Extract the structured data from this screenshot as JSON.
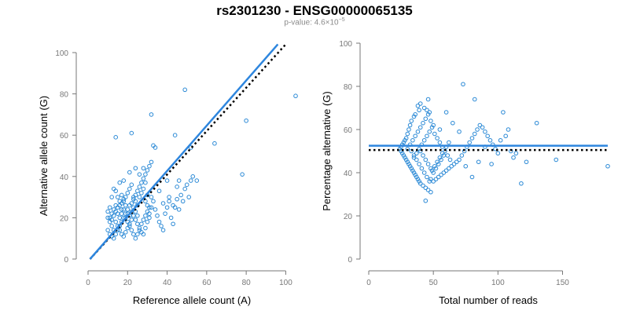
{
  "title": "rs2301230 - ENSG00000065135",
  "subtitle": {
    "prefix": "p-value: 4.6",
    "times": "×",
    "base": "10",
    "exponent": "−5"
  },
  "colors": {
    "points": "#2c8ad6",
    "fit_line": "#2e86de",
    "reference_line": "#000000",
    "axis": "#777777"
  },
  "chart_data": [
    {
      "type": "scatter",
      "xlabel": "Reference allele count (A)",
      "ylabel": "Alternative allele count (G)",
      "xlim": [
        0,
        105
      ],
      "ylim": [
        0,
        100
      ],
      "xticks": [
        0,
        20,
        40,
        60,
        80,
        100
      ],
      "yticks": [
        0,
        20,
        40,
        60,
        80,
        100
      ],
      "fit_line": {
        "x": [
          1,
          96
        ],
        "y": [
          0,
          104
        ]
      },
      "reference_line": {
        "x": [
          1,
          100
        ],
        "y": [
          0,
          104
        ]
      },
      "points": [
        [
          14,
          59
        ],
        [
          22,
          61
        ],
        [
          32,
          70
        ],
        [
          33,
          55
        ],
        [
          34,
          54
        ],
        [
          44,
          60
        ],
        [
          49,
          82
        ],
        [
          80,
          67
        ],
        [
          78,
          41
        ],
        [
          105,
          79
        ],
        [
          64,
          56
        ],
        [
          52,
          54
        ],
        [
          55,
          38
        ],
        [
          40,
          38
        ],
        [
          45,
          35
        ],
        [
          46,
          38
        ],
        [
          41,
          30
        ],
        [
          43,
          26
        ],
        [
          38,
          27
        ],
        [
          36,
          33
        ],
        [
          30,
          31
        ],
        [
          32,
          30
        ],
        [
          31,
          20
        ],
        [
          29,
          37
        ],
        [
          28,
          44
        ],
        [
          24,
          44
        ],
        [
          26,
          41
        ],
        [
          21,
          42
        ],
        [
          18,
          38
        ],
        [
          16,
          37
        ],
        [
          13,
          34
        ],
        [
          17,
          31
        ],
        [
          15,
          30
        ],
        [
          14,
          33
        ],
        [
          12,
          30
        ],
        [
          11,
          25
        ],
        [
          10,
          23
        ],
        [
          10,
          20
        ],
        [
          11,
          18
        ],
        [
          12,
          16
        ],
        [
          13,
          14
        ],
        [
          10,
          14
        ],
        [
          11,
          12
        ],
        [
          12,
          11
        ],
        [
          13,
          10
        ],
        [
          14,
          12
        ],
        [
          15,
          14
        ],
        [
          16,
          16
        ],
        [
          17,
          18
        ],
        [
          18,
          20
        ],
        [
          19,
          22
        ],
        [
          20,
          24
        ],
        [
          21,
          26
        ],
        [
          22,
          23
        ],
        [
          23,
          21
        ],
        [
          24,
          19
        ],
        [
          25,
          17
        ],
        [
          26,
          15
        ],
        [
          27,
          13
        ],
        [
          28,
          12
        ],
        [
          29,
          15
        ],
        [
          30,
          18
        ],
        [
          31,
          22
        ],
        [
          32,
          25
        ],
        [
          33,
          28
        ],
        [
          34,
          24
        ],
        [
          35,
          21
        ],
        [
          36,
          18
        ],
        [
          37,
          16
        ],
        [
          38,
          14
        ],
        [
          39,
          22
        ],
        [
          40,
          25
        ],
        [
          41,
          28
        ],
        [
          42,
          20
        ],
        [
          43,
          17
        ],
        [
          44,
          25
        ],
        [
          45,
          29
        ],
        [
          46,
          24
        ],
        [
          47,
          31
        ],
        [
          48,
          28
        ],
        [
          49,
          34
        ],
        [
          50,
          36
        ],
        [
          51,
          30
        ],
        [
          52,
          38
        ],
        [
          53,
          40
        ],
        [
          16,
          26
        ],
        [
          17,
          24
        ],
        [
          18,
          28
        ],
        [
          19,
          30
        ],
        [
          20,
          32
        ],
        [
          21,
          34
        ],
        [
          22,
          36
        ],
        [
          23,
          30
        ],
        [
          24,
          28
        ],
        [
          25,
          26
        ],
        [
          26,
          30
        ],
        [
          27,
          32
        ],
        [
          28,
          34
        ],
        [
          29,
          28
        ],
        [
          30,
          26
        ],
        [
          12,
          22
        ],
        [
          13,
          24
        ],
        [
          14,
          26
        ],
        [
          15,
          22
        ],
        [
          16,
          20
        ],
        [
          17,
          22
        ],
        [
          18,
          24
        ],
        [
          19,
          20
        ],
        [
          20,
          18
        ],
        [
          21,
          16
        ],
        [
          22,
          14
        ],
        [
          23,
          12
        ],
        [
          24,
          10
        ],
        [
          25,
          12
        ],
        [
          26,
          14
        ],
        [
          27,
          17
        ],
        [
          28,
          19
        ],
        [
          29,
          21
        ],
        [
          30,
          23
        ],
        [
          31,
          25
        ],
        [
          14,
          18
        ],
        [
          15,
          16
        ],
        [
          16,
          14
        ],
        [
          17,
          12
        ],
        [
          18,
          11
        ],
        [
          19,
          13
        ],
        [
          20,
          15
        ],
        [
          21,
          17
        ],
        [
          22,
          19
        ],
        [
          23,
          25
        ],
        [
          24,
          23
        ],
        [
          25,
          21
        ],
        [
          11,
          20
        ],
        [
          12,
          19
        ],
        [
          13,
          21
        ],
        [
          14,
          23
        ],
        [
          15,
          25
        ],
        [
          16,
          28
        ],
        [
          17,
          27
        ],
        [
          18,
          29
        ],
        [
          19,
          26
        ],
        [
          20,
          22
        ],
        [
          21,
          21
        ],
        [
          22,
          27
        ],
        [
          23,
          29
        ],
        [
          24,
          31
        ],
        [
          25,
          33
        ],
        [
          26,
          35
        ],
        [
          27,
          37
        ],
        [
          28,
          39
        ],
        [
          29,
          41
        ],
        [
          30,
          43
        ],
        [
          31,
          45
        ],
        [
          32,
          47
        ]
      ]
    },
    {
      "type": "scatter",
      "xlabel": "Total number of reads",
      "ylabel": "Percentage alternative (G)",
      "xlim": [
        0,
        185
      ],
      "ylim": [
        0,
        100
      ],
      "xticks": [
        0,
        50,
        100,
        150
      ],
      "yticks": [
        0,
        20,
        40,
        60,
        80,
        100
      ],
      "fit_line": {
        "x": [
          0,
          185
        ],
        "y": [
          52.5,
          52.5
        ]
      },
      "reference_line": {
        "x": [
          0,
          185
        ],
        "y": [
          50.5,
          50.5
        ]
      },
      "points": [
        [
          73,
          81
        ],
        [
          82,
          74
        ],
        [
          46,
          74
        ],
        [
          40,
          72
        ],
        [
          38,
          71
        ],
        [
          43,
          70
        ],
        [
          45,
          69
        ],
        [
          47,
          68
        ],
        [
          39,
          69
        ],
        [
          36,
          67
        ],
        [
          35,
          66
        ],
        [
          33,
          64
        ],
        [
          32,
          62
        ],
        [
          31,
          60
        ],
        [
          30,
          58
        ],
        [
          29,
          56
        ],
        [
          28,
          55
        ],
        [
          27,
          54
        ],
        [
          26,
          53
        ],
        [
          25,
          52
        ],
        [
          24,
          51
        ],
        [
          25,
          50
        ],
        [
          26,
          49
        ],
        [
          27,
          48
        ],
        [
          28,
          47
        ],
        [
          29,
          46
        ],
        [
          30,
          45
        ],
        [
          31,
          44
        ],
        [
          32,
          43
        ],
        [
          33,
          42
        ],
        [
          34,
          41
        ],
        [
          35,
          40
        ],
        [
          36,
          39
        ],
        [
          37,
          38
        ],
        [
          38,
          37
        ],
        [
          39,
          36
        ],
        [
          40,
          35
        ],
        [
          42,
          34
        ],
        [
          44,
          33
        ],
        [
          46,
          32
        ],
        [
          48,
          31
        ],
        [
          50,
          36
        ],
        [
          52,
          37
        ],
        [
          54,
          38
        ],
        [
          56,
          39
        ],
        [
          58,
          40
        ],
        [
          60,
          41
        ],
        [
          62,
          42
        ],
        [
          64,
          43
        ],
        [
          66,
          44
        ],
        [
          68,
          45
        ],
        [
          70,
          46
        ],
        [
          72,
          48
        ],
        [
          74,
          50
        ],
        [
          76,
          52
        ],
        [
          78,
          54
        ],
        [
          80,
          56
        ],
        [
          82,
          58
        ],
        [
          84,
          60
        ],
        [
          86,
          62
        ],
        [
          88,
          61
        ],
        [
          90,
          59
        ],
        [
          92,
          57
        ],
        [
          94,
          55
        ],
        [
          96,
          53
        ],
        [
          98,
          51
        ],
        [
          100,
          49
        ],
        [
          102,
          55
        ],
        [
          104,
          68
        ],
        [
          106,
          57
        ],
        [
          108,
          60
        ],
        [
          110,
          50
        ],
        [
          112,
          47
        ],
        [
          114,
          49
        ],
        [
          118,
          35
        ],
        [
          122,
          45
        ],
        [
          130,
          63
        ],
        [
          145,
          46
        ],
        [
          185,
          43
        ],
        [
          44,
          27
        ],
        [
          48,
          37
        ],
        [
          55,
          60
        ],
        [
          60,
          68
        ],
        [
          65,
          63
        ],
        [
          70,
          59
        ],
        [
          75,
          43
        ],
        [
          80,
          38
        ],
        [
          85,
          45
        ],
        [
          90,
          52
        ],
        [
          95,
          44
        ],
        [
          35,
          47
        ],
        [
          37,
          49
        ],
        [
          39,
          51
        ],
        [
          41,
          53
        ],
        [
          43,
          55
        ],
        [
          45,
          57
        ],
        [
          47,
          59
        ],
        [
          49,
          61
        ],
        [
          51,
          58
        ],
        [
          53,
          56
        ],
        [
          55,
          54
        ],
        [
          57,
          52
        ],
        [
          59,
          50
        ],
        [
          61,
          48
        ],
        [
          63,
          46
        ],
        [
          30,
          51
        ],
        [
          32,
          53
        ],
        [
          34,
          55
        ],
        [
          36,
          57
        ],
        [
          38,
          59
        ],
        [
          40,
          61
        ],
        [
          42,
          63
        ],
        [
          44,
          65
        ],
        [
          46,
          67
        ],
        [
          48,
          64
        ],
        [
          50,
          62
        ],
        [
          33,
          50
        ],
        [
          35,
          48
        ],
        [
          37,
          46
        ],
        [
          39,
          44
        ],
        [
          41,
          42
        ],
        [
          43,
          40
        ],
        [
          45,
          38
        ],
        [
          47,
          36
        ],
        [
          49,
          41
        ],
        [
          51,
          43
        ],
        [
          53,
          45
        ],
        [
          55,
          47
        ],
        [
          57,
          49
        ],
        [
          40,
          50
        ],
        [
          42,
          48
        ],
        [
          44,
          46
        ],
        [
          46,
          44
        ],
        [
          48,
          42
        ],
        [
          50,
          40
        ],
        [
          52,
          42
        ],
        [
          54,
          44
        ],
        [
          56,
          46
        ],
        [
          58,
          48
        ],
        [
          60,
          52
        ],
        [
          62,
          54
        ]
      ]
    }
  ]
}
